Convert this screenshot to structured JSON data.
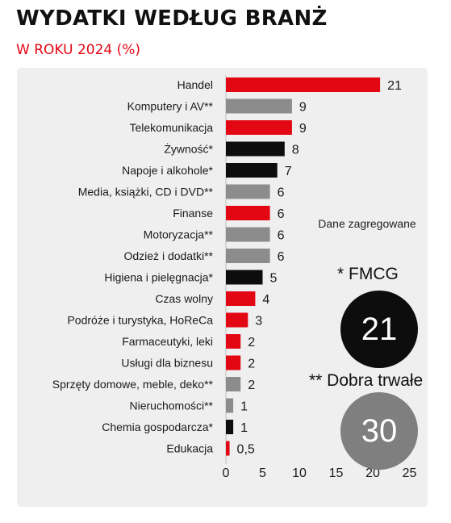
{
  "header": {
    "title": "WYDATKI WEDŁUG BRANŻ",
    "subtitle": "W ROKU 2024 (%)"
  },
  "side_panel": {
    "note": "Dane zagregowane",
    "fmcg_label": "* FMCG",
    "fmcg_value": "21",
    "durable_label": "** Dobra trwałe",
    "durable_value": "30"
  },
  "colors": {
    "red": "#e30613",
    "gray": "#8c8c8c",
    "black": "#0d0d0d",
    "panel": "#efefef",
    "circle_gray": "#7f7f7f"
  },
  "chart_data": {
    "type": "bar",
    "orientation": "horizontal",
    "title": "WYDATKI WEDŁUG BRANŻ",
    "subtitle": "W ROKU 2024 (%)",
    "categories": [
      "Handel",
      "Komputery i AV**",
      "Telekomunikacja",
      "Żywność*",
      "Napoje i alkohole*",
      "Media, książki, CD i DVD**",
      "Finanse",
      "Motoryzacja**",
      "Odzież i dodatki**",
      "Higiena i pielęgnacja*",
      "Czas wolny",
      "Podróże i turystyka, HoReCa",
      "Farmaceutyki, leki",
      "Usługi dla biznesu",
      "Sprzęty domowe, meble, deko**",
      "Nieruchomości**",
      "Chemia gospodarcza*",
      "Edukacja"
    ],
    "values": [
      21,
      9,
      9,
      8,
      7,
      6,
      6,
      6,
      6,
      5,
      4,
      3,
      2,
      2,
      2,
      1,
      1,
      0.5
    ],
    "value_labels": [
      "21",
      "9",
      "9",
      "8",
      "7",
      "6",
      "6",
      "6",
      "6",
      "5",
      "4",
      "3",
      "2",
      "2",
      "2",
      "1",
      "1",
      "0,5"
    ],
    "bar_groups": [
      "red",
      "gray",
      "red",
      "black",
      "black",
      "gray",
      "red",
      "gray",
      "gray",
      "black",
      "red",
      "red",
      "red",
      "red",
      "gray",
      "gray",
      "black",
      "red"
    ],
    "x_ticks": [
      "0",
      "5",
      "10",
      "15",
      "20",
      "25"
    ],
    "xlim": [
      0,
      25
    ],
    "xlabel": "",
    "ylabel": "",
    "grid": false,
    "legend": "none"
  }
}
